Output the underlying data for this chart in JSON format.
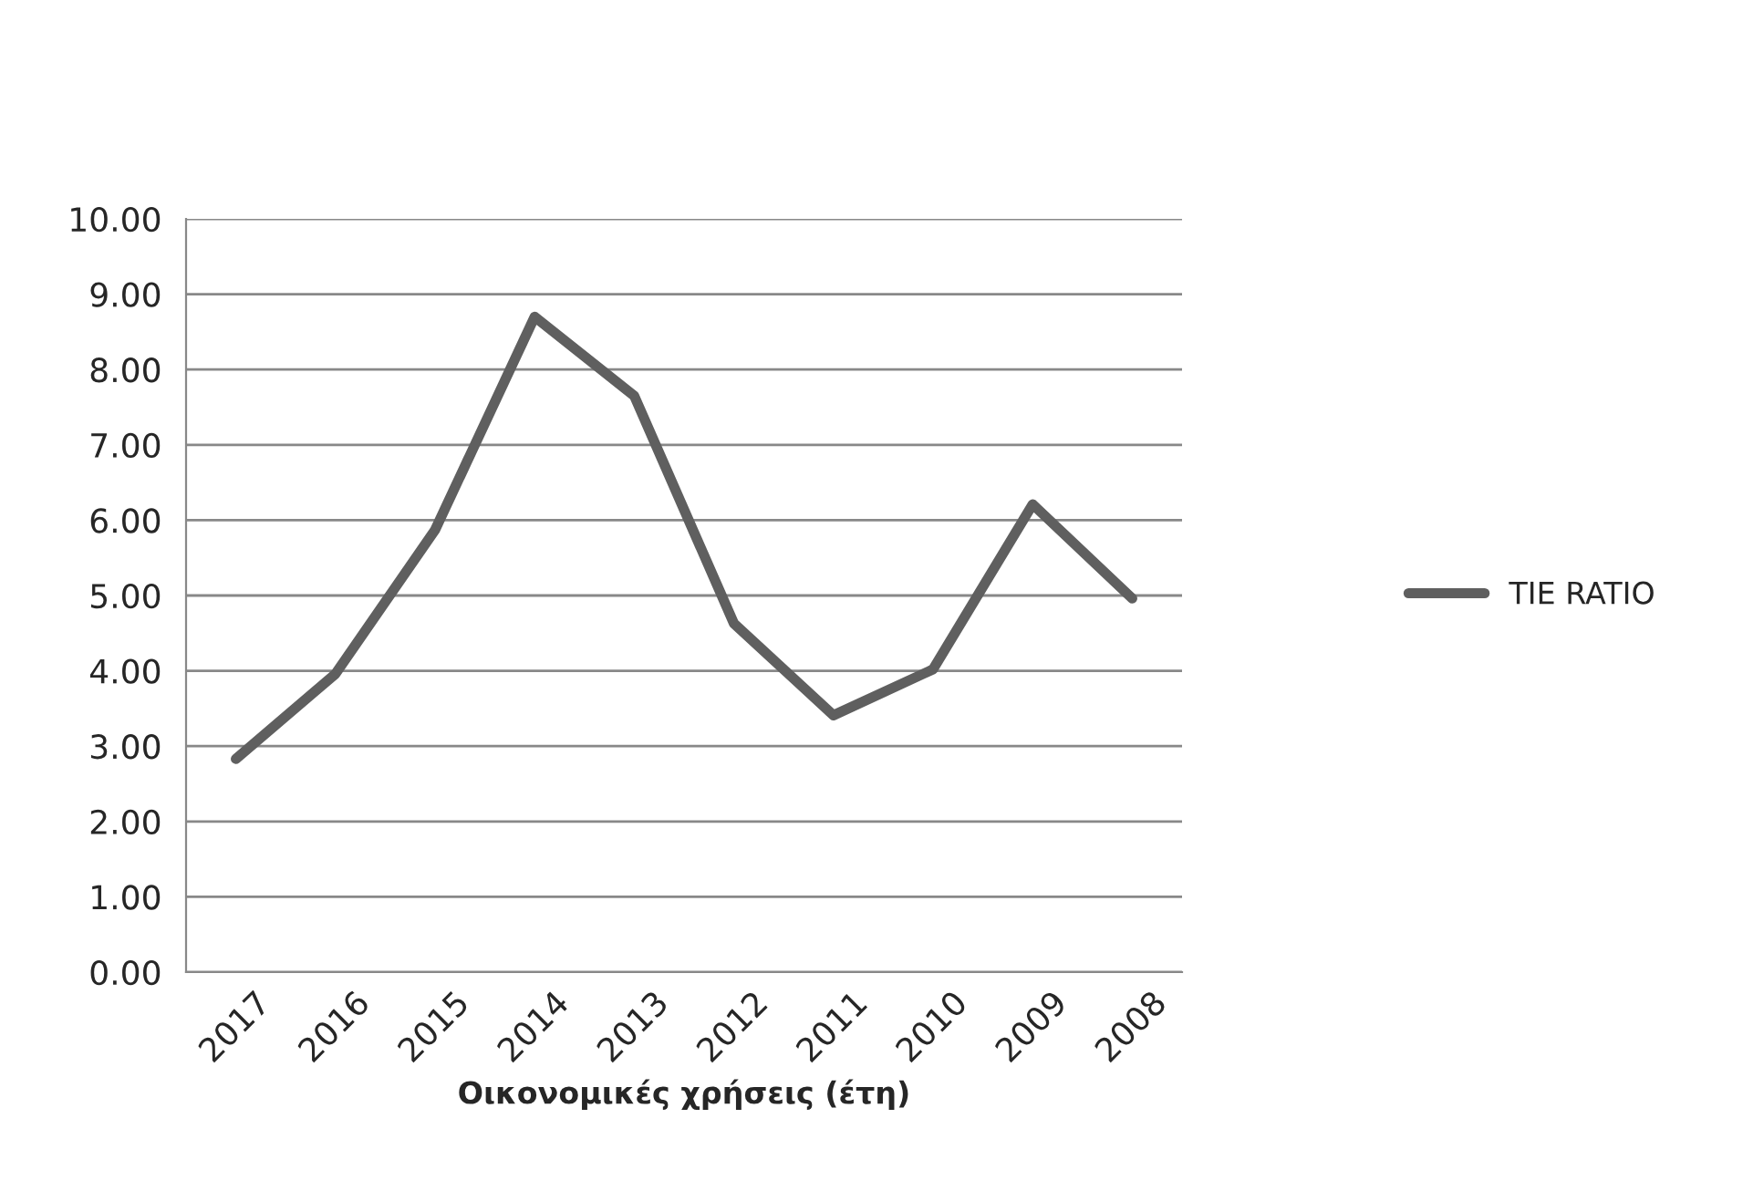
{
  "chart_data": {
    "type": "line",
    "xlabel": "Οικονομικές χρήσεις (έτη)",
    "categories": [
      "2017",
      "2016",
      "2015",
      "2014",
      "2013",
      "2012",
      "2011",
      "2010",
      "2009",
      "2008"
    ],
    "series": [
      {
        "name": "TIE RATIO",
        "color": "#5f5f5f",
        "values": [
          2.83,
          3.96,
          5.87,
          8.7,
          7.65,
          4.63,
          3.41,
          4.02,
          6.21,
          4.96
        ]
      }
    ],
    "ylim": [
      0,
      10
    ],
    "yticks": [
      {
        "value": 0,
        "label": "0.00"
      },
      {
        "value": 1,
        "label": "1.00"
      },
      {
        "value": 2,
        "label": "2.00"
      },
      {
        "value": 3,
        "label": "3.00"
      },
      {
        "value": 4,
        "label": "4.00"
      },
      {
        "value": 5,
        "label": "5.00"
      },
      {
        "value": 6,
        "label": "6.00"
      },
      {
        "value": 7,
        "label": "7.00"
      },
      {
        "value": 8,
        "label": "8.00"
      },
      {
        "value": 9,
        "label": "9.00"
      },
      {
        "value": 10,
        "label": "10.00"
      }
    ],
    "grid": "y",
    "legend": "right",
    "marker": "none",
    "line_style": "solid"
  }
}
